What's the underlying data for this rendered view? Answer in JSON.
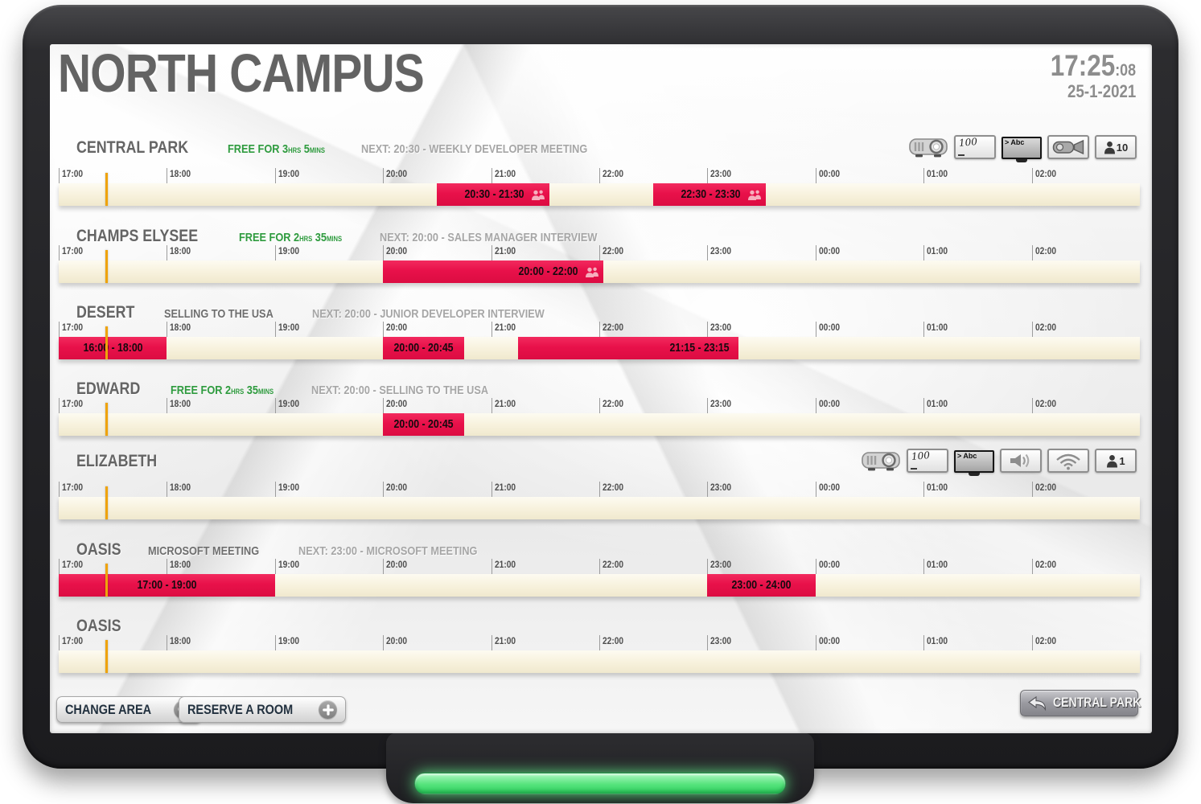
{
  "title": "NORTH CAMPUS",
  "clock": {
    "time": "17:25",
    "seconds": ":08",
    "date": "25-1-2021"
  },
  "timeline": {
    "tick_labels": [
      "17:00",
      "18:00",
      "19:00",
      "20:00",
      "21:00",
      "22:00",
      "23:00",
      "00:00",
      "01:00",
      "02:00"
    ],
    "current_time_pct": 4.32
  },
  "rooms": [
    {
      "name": "CENTRAL PARK",
      "status_free": [
        {
          "text": "FREE FOR 3",
          "unit": false
        },
        {
          "text": "HRS",
          "unit": true
        },
        {
          "text": " 5",
          "unit": false
        },
        {
          "text": "MINS",
          "unit": true
        }
      ],
      "next": "NEXT: 20:30 - WEEKLY DEVELOPER MEETING",
      "amenities": [
        {
          "type": "projector"
        },
        {
          "type": "whiteboard",
          "label": "100"
        },
        {
          "type": "screen",
          "label": "> Abc"
        },
        {
          "type": "camera"
        },
        {
          "type": "capacity",
          "label": "10"
        }
      ],
      "bookings": [
        {
          "label": "20:30 - 21:30",
          "start_pct": 35,
          "width_pct": 10,
          "align": "right",
          "attendees_icon": true
        },
        {
          "label": "22:30 - 23:30",
          "start_pct": 55,
          "width_pct": 10,
          "align": "right",
          "attendees_icon": true
        }
      ]
    },
    {
      "name": "CHAMPS ELYSEE",
      "status_free": [
        {
          "text": "FREE FOR 2",
          "unit": false
        },
        {
          "text": "HRS",
          "unit": true
        },
        {
          "text": " 35",
          "unit": false
        },
        {
          "text": "MINS",
          "unit": true
        }
      ],
      "next": "NEXT: 20:00 - SALES MANAGER INTERVIEW",
      "bookings": [
        {
          "label": "20:00 - 22:00",
          "start_pct": 30,
          "width_pct": 20,
          "align": "right",
          "attendees_icon": true
        }
      ]
    },
    {
      "name": "DESERT",
      "status_busy": "SELLING TO THE USA",
      "next": "NEXT: 20:00 - JUNIOR DEVELOPER INTERVIEW",
      "bookings": [
        {
          "label": "16:00 - 18:00",
          "start_pct": 0,
          "width_pct": 10,
          "align": "center"
        },
        {
          "label": "20:00 - 20:45",
          "start_pct": 30,
          "width_pct": 7.5,
          "align": "center"
        },
        {
          "label": "21:15 - 23:15",
          "start_pct": 42.5,
          "width_pct": 20,
          "align": "right"
        }
      ]
    },
    {
      "name": "EDWARD",
      "status_free": [
        {
          "text": "FREE FOR 2",
          "unit": false
        },
        {
          "text": "HRS",
          "unit": true
        },
        {
          "text": " 35",
          "unit": false
        },
        {
          "text": "MINS",
          "unit": true
        }
      ],
      "next": "NEXT: 20:00 - SELLING TO THE USA",
      "bookings": [
        {
          "label": "20:00 - 20:45",
          "start_pct": 30,
          "width_pct": 7.5,
          "align": "center"
        }
      ]
    },
    {
      "name": "ELIZABETH",
      "amenities": [
        {
          "type": "projector"
        },
        {
          "type": "whiteboard",
          "label": "100"
        },
        {
          "type": "screen",
          "label": "> Abc"
        },
        {
          "type": "speaker"
        },
        {
          "type": "wifi"
        },
        {
          "type": "capacity",
          "label": "1"
        }
      ],
      "bookings": []
    },
    {
      "name": "OASIS",
      "status_busy": "MICROSOFT MEETING",
      "next": "NEXT: 23:00 - MICROSOFT MEETING",
      "bookings": [
        {
          "label": "17:00 - 19:00",
          "start_pct": 0,
          "width_pct": 20,
          "align": "center"
        },
        {
          "label": "23:00 - 24:00",
          "start_pct": 60,
          "width_pct": 10,
          "align": "center"
        }
      ]
    },
    {
      "name": "OASIS",
      "bookings": []
    }
  ],
  "footer": {
    "change_area_label": "CHANGE AREA",
    "reserve_room_label": "RESERVE A ROOM",
    "back_room_label": "CENTRAL PARK"
  },
  "colors": {
    "booking_red": "#e8114a",
    "free_green": "#2e9b3e",
    "bar_cream": "#f6f1dd",
    "marker_amber": "#efa30a",
    "led_green": "#52e57a"
  }
}
